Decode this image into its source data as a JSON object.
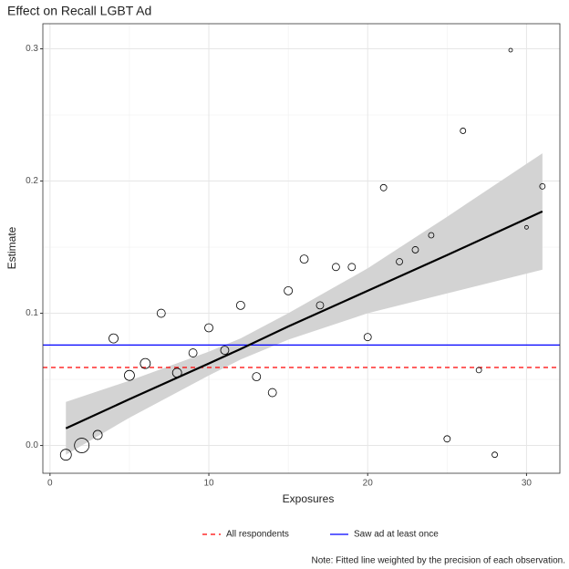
{
  "chart_data": {
    "type": "bubble",
    "title": "Effect on Recall LGBT Ad",
    "x_label": "Exposures",
    "y_label": "Estimate",
    "note": "Note: Fitted line weighted by the precision of each observation.",
    "x": [
      1,
      2,
      3,
      4,
      5,
      6,
      7,
      8,
      9,
      10,
      11,
      12,
      13,
      14,
      15,
      16,
      17,
      18,
      19,
      20,
      21,
      22,
      23,
      24,
      25,
      26,
      27,
      28,
      29,
      30,
      31
    ],
    "values": [
      -0.007,
      0.0,
      0.008,
      0.081,
      0.053,
      0.062,
      0.1,
      0.055,
      0.07,
      0.089,
      0.072,
      0.106,
      0.052,
      0.04,
      0.117,
      0.141,
      0.106,
      0.135,
      0.135,
      0.082,
      0.195,
      0.139,
      0.148,
      0.159,
      0.005,
      0.238,
      0.057,
      -0.007,
      0.299,
      0.165,
      0.196
    ],
    "sizes": [
      6,
      8,
      5,
      5,
      5.5,
      5.5,
      4.5,
      5,
      4.5,
      4.5,
      4.5,
      4.5,
      4.5,
      4.5,
      4.5,
      4.5,
      4,
      4,
      4,
      4,
      3.5,
      3.5,
      3.5,
      3,
      3.5,
      3,
      3,
      3,
      2,
      2,
      3
    ],
    "fit": {
      "x": [
        1,
        5,
        10,
        12,
        15,
        20,
        25,
        31
      ],
      "values": [
        0.013,
        0.035,
        0.062,
        0.073,
        0.09,
        0.117,
        0.144,
        0.177
      ],
      "lower": [
        -0.007,
        0.021,
        0.053,
        0.065,
        0.08,
        0.1,
        0.115,
        0.133
      ],
      "upper": [
        0.033,
        0.049,
        0.071,
        0.081,
        0.1,
        0.134,
        0.173,
        0.221
      ]
    },
    "reference_lines": [
      {
        "name": "All respondents",
        "value": 0.059,
        "color": "#ff0000",
        "dashed": true
      },
      {
        "name": "Saw ad at least once",
        "value": 0.076,
        "color": "#0000ff",
        "dashed": false
      }
    ],
    "xlim": [
      -0.45,
      32.1
    ],
    "ylim": [
      -0.021,
      0.319
    ],
    "xticks": [
      0,
      10,
      20,
      30
    ],
    "yticks": [
      {
        "value": 0,
        "label": "0.0"
      },
      0.1,
      0.2,
      0.3
    ],
    "minor_xticks": [
      5,
      15,
      25
    ],
    "minor_yticks": [
      0.05,
      0.15,
      0.25
    ],
    "grid": true
  }
}
